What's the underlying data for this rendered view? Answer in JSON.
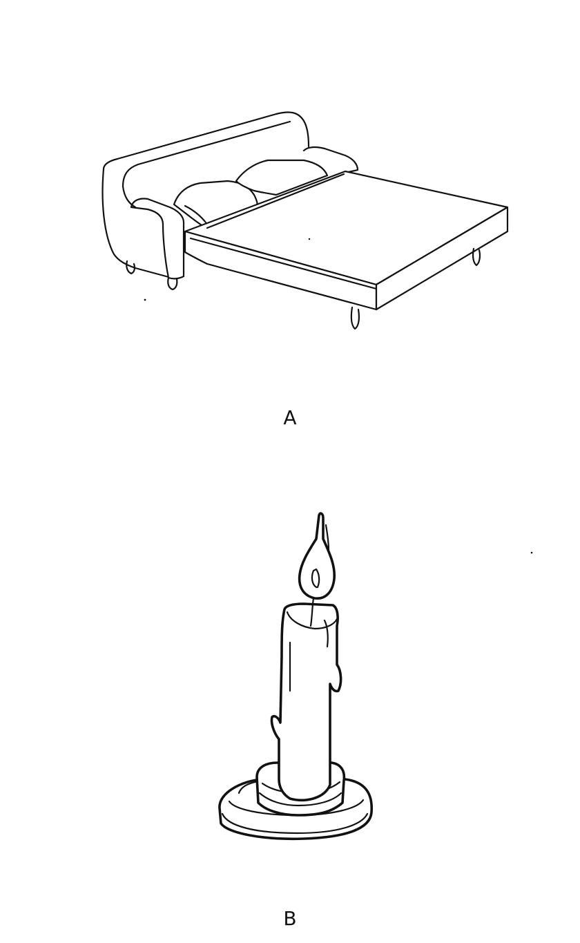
{
  "figures": [
    {
      "label": "A",
      "subject": "sofa-bed-icon"
    },
    {
      "label": "B",
      "subject": "candle-icon"
    }
  ],
  "ink_color": "#111111",
  "background_color": "#ffffff"
}
